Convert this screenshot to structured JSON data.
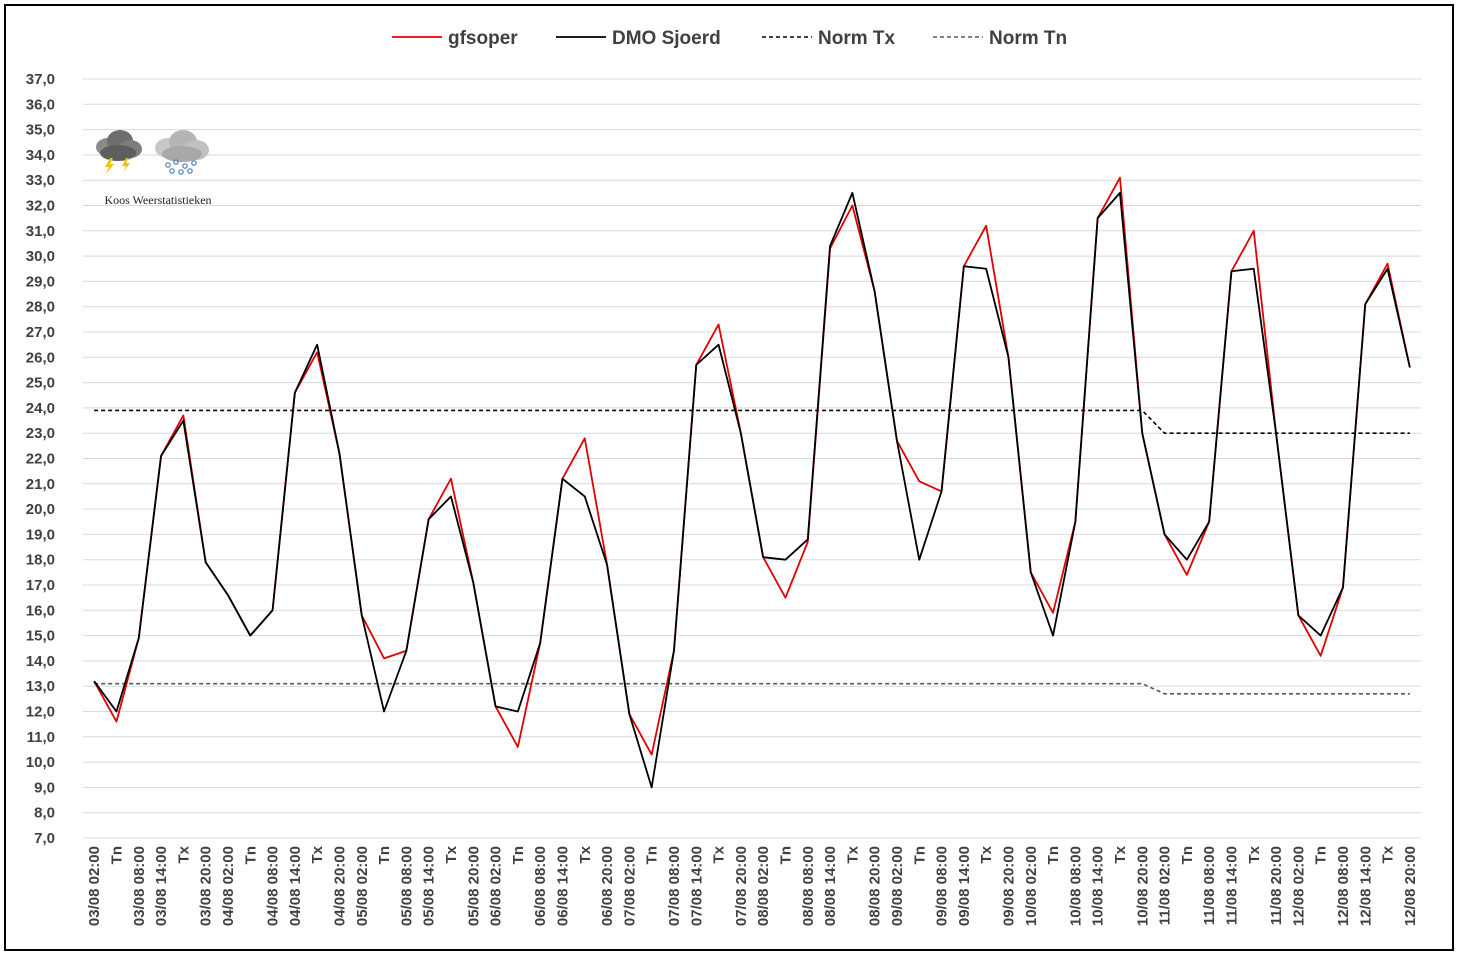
{
  "chart_data": {
    "type": "line",
    "title": "",
    "xlabel": "",
    "ylabel": "",
    "ylim": [
      7,
      37
    ],
    "ytick_step": 1,
    "grid": "horizontal",
    "legend_position": "top",
    "x_labels": [
      "03/08 02:00",
      "Tn",
      "03/08 08:00",
      "03/08 14:00",
      "Tx",
      "03/08 20:00",
      "04/08 02:00",
      "Tn",
      "04/08 08:00",
      "04/08 14:00",
      "Tx",
      "04/08 20:00",
      "05/08 02:00",
      "Tn",
      "05/08 08:00",
      "05/08 14:00",
      "Tx",
      "05/08 20:00",
      "06/08 02:00",
      "Tn",
      "06/08 08:00",
      "06/08 14:00",
      "Tx",
      "06/08 20:00",
      "07/08 02:00",
      "Tn",
      "07/08 08:00",
      "07/08 14:00",
      "Tx",
      "07/08 20:00",
      "08/08 02:00",
      "Tn",
      "08/08 08:00",
      "08/08 14:00",
      "Tx",
      "08/08 20:00",
      "09/08 02:00",
      "Tn",
      "09/08 08:00",
      "09/08 14:00",
      "Tx",
      "09/08 20:00",
      "10/08 02:00",
      "Tn",
      "10/08 08:00",
      "10/08 14:00",
      "Tx",
      "10/08 20:00",
      "11/08 02:00",
      "Tn",
      "11/08 08:00",
      "11/08 14:00",
      "Tx",
      "11/08 20:00",
      "12/08 02:00",
      "Tn",
      "12/08 08:00",
      "12/08 14:00",
      "Tx",
      "12/08 20:00"
    ],
    "series": [
      {
        "name": "gfsoper",
        "color": "#e00000",
        "dash": "solid",
        "values": [
          13.2,
          11.6,
          14.9,
          22.1,
          23.7,
          17.9,
          16.6,
          15.0,
          16.0,
          24.6,
          26.2,
          22.2,
          15.8,
          14.1,
          14.4,
          19.6,
          21.2,
          17.1,
          12.2,
          10.6,
          14.7,
          21.2,
          22.8,
          17.8,
          11.9,
          10.3,
          14.4,
          25.7,
          27.3,
          23.0,
          18.1,
          16.5,
          18.7,
          30.3,
          32.0,
          28.6,
          22.7,
          21.1,
          20.7,
          29.6,
          31.2,
          26.0,
          17.5,
          15.9,
          19.5,
          31.5,
          33.1,
          23.0,
          19.0,
          17.4,
          19.5,
          29.4,
          31.0,
          23.0,
          15.8,
          14.2,
          16.9,
          28.1,
          29.7,
          25.6
        ]
      },
      {
        "name": "DMO Sjoerd",
        "color": "#000000",
        "dash": "solid",
        "values": [
          13.2,
          12.0,
          14.9,
          22.1,
          23.5,
          17.9,
          16.6,
          15.0,
          16.0,
          24.6,
          26.5,
          22.2,
          15.8,
          12.0,
          14.4,
          19.6,
          20.5,
          17.1,
          12.2,
          12.0,
          14.7,
          21.2,
          20.5,
          17.8,
          11.9,
          9.0,
          14.4,
          25.7,
          26.5,
          23.0,
          18.1,
          18.0,
          18.8,
          30.4,
          32.5,
          28.6,
          22.7,
          18.0,
          20.7,
          29.6,
          29.5,
          26.0,
          17.5,
          15.0,
          19.5,
          31.5,
          32.5,
          23.0,
          19.0,
          18.0,
          19.5,
          29.4,
          29.5,
          23.0,
          15.8,
          15.0,
          16.9,
          28.1,
          29.5,
          25.6
        ]
      },
      {
        "name": "Norm Tx",
        "color": "#000000",
        "dash": "dashed",
        "values": [
          23.9,
          23.9,
          23.9,
          23.9,
          23.9,
          23.9,
          23.9,
          23.9,
          23.9,
          23.9,
          23.9,
          23.9,
          23.9,
          23.9,
          23.9,
          23.9,
          23.9,
          23.9,
          23.9,
          23.9,
          23.9,
          23.9,
          23.9,
          23.9,
          23.9,
          23.9,
          23.9,
          23.9,
          23.9,
          23.9,
          23.9,
          23.9,
          23.9,
          23.9,
          23.9,
          23.9,
          23.9,
          23.9,
          23.9,
          23.9,
          23.9,
          23.9,
          23.9,
          23.9,
          23.9,
          23.9,
          23.9,
          23.9,
          23.0,
          23.0,
          23.0,
          23.0,
          23.0,
          23.0,
          23.0,
          23.0,
          23.0,
          23.0,
          23.0,
          23.0
        ]
      },
      {
        "name": "Norm Tn",
        "color": "#595959",
        "dash": "dashed",
        "values": [
          13.1,
          13.1,
          13.1,
          13.1,
          13.1,
          13.1,
          13.1,
          13.1,
          13.1,
          13.1,
          13.1,
          13.1,
          13.1,
          13.1,
          13.1,
          13.1,
          13.1,
          13.1,
          13.1,
          13.1,
          13.1,
          13.1,
          13.1,
          13.1,
          13.1,
          13.1,
          13.1,
          13.1,
          13.1,
          13.1,
          13.1,
          13.1,
          13.1,
          13.1,
          13.1,
          13.1,
          13.1,
          13.1,
          13.1,
          13.1,
          13.1,
          13.1,
          13.1,
          13.1,
          13.1,
          13.1,
          13.1,
          13.1,
          12.7,
          12.7,
          12.7,
          12.7,
          12.7,
          12.7,
          12.7,
          12.7,
          12.7,
          12.7,
          12.7,
          12.7
        ]
      }
    ]
  },
  "logo": {
    "caption": "Koos Weerstatistieken",
    "icons": [
      "thunderstorm-cloud-icon",
      "snow-cloud-icon"
    ]
  }
}
